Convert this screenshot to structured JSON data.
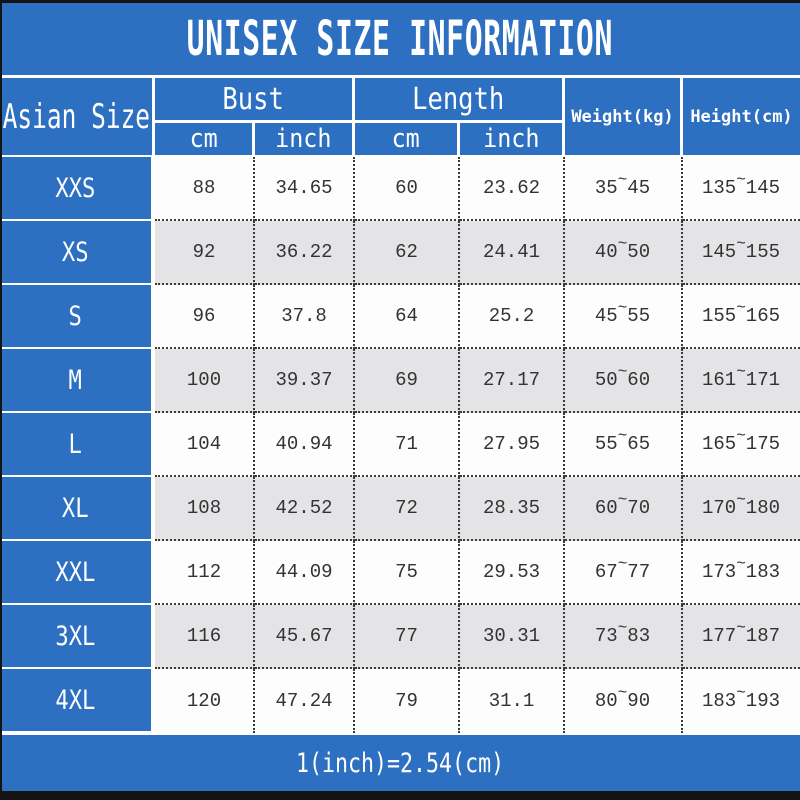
{
  "title": "UNISEX SIZE INFORMATION",
  "table": {
    "headers": {
      "asian_size": "Asian Size",
      "bust": "Bust",
      "length": "Length",
      "weight": "Weight(kg)",
      "height": "Height(cm)",
      "cm": "cm",
      "inch": "inch"
    },
    "tilde": "~",
    "rows": [
      {
        "size": "XXS",
        "bust_cm": "88",
        "bust_inch": "34.65",
        "length_cm": "60",
        "length_inch": "23.62",
        "weight_min": "35",
        "weight_max": "45",
        "height_min": "135",
        "height_max": "145"
      },
      {
        "size": "XS",
        "bust_cm": "92",
        "bust_inch": "36.22",
        "length_cm": "62",
        "length_inch": "24.41",
        "weight_min": "40",
        "weight_max": "50",
        "height_min": "145",
        "height_max": "155"
      },
      {
        "size": "S",
        "bust_cm": "96",
        "bust_inch": "37.8",
        "length_cm": "64",
        "length_inch": "25.2",
        "weight_min": "45",
        "weight_max": "55",
        "height_min": "155",
        "height_max": "165"
      },
      {
        "size": "M",
        "bust_cm": "100",
        "bust_inch": "39.37",
        "length_cm": "69",
        "length_inch": "27.17",
        "weight_min": "50",
        "weight_max": "60",
        "height_min": "161",
        "height_max": "171"
      },
      {
        "size": "L",
        "bust_cm": "104",
        "bust_inch": "40.94",
        "length_cm": "71",
        "length_inch": "27.95",
        "weight_min": "55",
        "weight_max": "65",
        "height_min": "165",
        "height_max": "175"
      },
      {
        "size": "XL",
        "bust_cm": "108",
        "bust_inch": "42.52",
        "length_cm": "72",
        "length_inch": "28.35",
        "weight_min": "60",
        "weight_max": "70",
        "height_min": "170",
        "height_max": "180"
      },
      {
        "size": "XXL",
        "bust_cm": "112",
        "bust_inch": "44.09",
        "length_cm": "75",
        "length_inch": "29.53",
        "weight_min": "67",
        "weight_max": "77",
        "height_min": "173",
        "height_max": "183"
      },
      {
        "size": "3XL",
        "bust_cm": "116",
        "bust_inch": "45.67",
        "length_cm": "77",
        "length_inch": "30.31",
        "weight_min": "73",
        "weight_max": "83",
        "height_min": "177",
        "height_max": "187"
      },
      {
        "size": "4XL",
        "bust_cm": "120",
        "bust_inch": "47.24",
        "length_cm": "79",
        "length_inch": "31.1",
        "weight_min": "80",
        "weight_max": "90",
        "height_min": "183",
        "height_max": "193"
      }
    ]
  },
  "footer": {
    "note": "1(inch)=2.54(cm)"
  },
  "colors": {
    "accent_blue": "#2d6fc0",
    "row_alt_gray": "#e4e3e6",
    "data_ink": "#333333",
    "border_dark": "#141414",
    "cell_border_dotted": "#3a3a3a",
    "header_text": "#ffffff"
  },
  "chart_data": {
    "type": "table",
    "title": "UNISEX SIZE INFORMATION",
    "columns": [
      "Asian Size",
      "Bust cm",
      "Bust inch",
      "Length cm",
      "Length inch",
      "Weight(kg)",
      "Height(cm)"
    ],
    "rows": [
      [
        "XXS",
        88,
        34.65,
        60,
        23.62,
        "35~45",
        "135~145"
      ],
      [
        "XS",
        92,
        36.22,
        62,
        24.41,
        "40~50",
        "145~155"
      ],
      [
        "S",
        96,
        37.8,
        64,
        25.2,
        "45~55",
        "155~165"
      ],
      [
        "M",
        100,
        39.37,
        69,
        27.17,
        "50~60",
        "161~171"
      ],
      [
        "L",
        104,
        40.94,
        71,
        27.95,
        "55~65",
        "165~175"
      ],
      [
        "XL",
        108,
        42.52,
        72,
        28.35,
        "60~70",
        "170~180"
      ],
      [
        "XXL",
        112,
        44.09,
        75,
        29.53,
        "67~77",
        "173~183"
      ],
      [
        "3XL",
        116,
        45.67,
        77,
        30.31,
        "73~83",
        "177~187"
      ],
      [
        "4XL",
        120,
        47.24,
        79,
        31.1,
        "80~90",
        "183~193"
      ]
    ],
    "note": "1(inch)=2.54(cm)"
  }
}
